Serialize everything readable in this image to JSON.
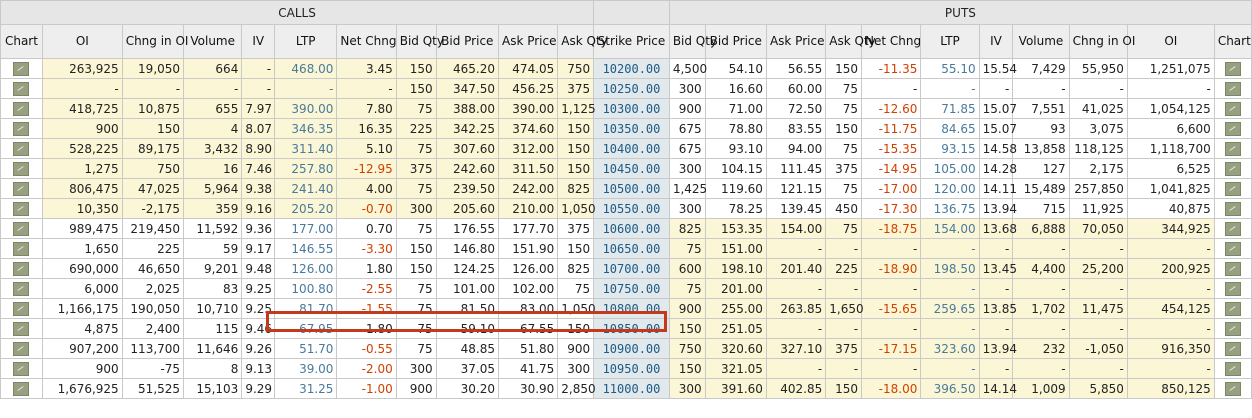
{
  "groups": {
    "calls": "CALLS",
    "puts": "PUTS"
  },
  "headers": {
    "calls": [
      "Chart",
      "OI",
      "Chng in OI",
      "Volume",
      "IV",
      "LTP",
      "Net Chng",
      "Bid Qty",
      "Bid Price",
      "Ask Price",
      "Ask Qty"
    ],
    "strike": "Strike Price",
    "puts": [
      "Bid Qty",
      "Bid Price",
      "Ask Price",
      "Ask Qty",
      "Net Chng",
      "LTP",
      "IV",
      "Volume",
      "Chng in OI",
      "OI",
      "Chart"
    ]
  },
  "rows": [
    {
      "calls": [
        "263,925",
        "19,050",
        "664",
        "-",
        "468.00",
        "3.45",
        "150",
        "465.20",
        "474.05",
        "750"
      ],
      "strike": "10200.00",
      "puts": [
        "4,500",
        "54.10",
        "56.55",
        "150",
        "-11.35",
        "55.10",
        "15.54",
        "7,429",
        "55,950",
        "1,251,075"
      ]
    },
    {
      "calls": [
        "-",
        "-",
        "-",
        "-",
        "-",
        "-",
        "150",
        "347.50",
        "456.25",
        "375"
      ],
      "strike": "10250.00",
      "puts": [
        "300",
        "16.60",
        "60.00",
        "75",
        "-",
        "-",
        "-",
        "-",
        "-",
        "-"
      ]
    },
    {
      "calls": [
        "418,725",
        "10,875",
        "655",
        "7.97",
        "390.00",
        "7.80",
        "75",
        "388.00",
        "390.00",
        "1,125"
      ],
      "strike": "10300.00",
      "puts": [
        "900",
        "71.00",
        "72.50",
        "75",
        "-12.60",
        "71.85",
        "15.07",
        "7,551",
        "41,025",
        "1,054,125"
      ]
    },
    {
      "calls": [
        "900",
        "150",
        "4",
        "8.07",
        "346.35",
        "16.35",
        "225",
        "342.25",
        "374.60",
        "150"
      ],
      "strike": "10350.00",
      "puts": [
        "675",
        "78.80",
        "83.55",
        "150",
        "-11.75",
        "84.65",
        "15.07",
        "93",
        "3,075",
        "6,600"
      ]
    },
    {
      "calls": [
        "528,225",
        "89,175",
        "3,432",
        "8.90",
        "311.40",
        "5.10",
        "75",
        "307.60",
        "312.00",
        "150"
      ],
      "strike": "10400.00",
      "puts": [
        "675",
        "93.10",
        "94.00",
        "75",
        "-15.35",
        "93.15",
        "14.58",
        "13,858",
        "118,125",
        "1,118,700"
      ]
    },
    {
      "calls": [
        "1,275",
        "750",
        "16",
        "7.46",
        "257.80",
        "-12.95",
        "375",
        "242.60",
        "311.50",
        "150"
      ],
      "strike": "10450.00",
      "puts": [
        "300",
        "104.15",
        "111.45",
        "375",
        "-14.95",
        "105.00",
        "14.28",
        "127",
        "2,175",
        "6,525"
      ]
    },
    {
      "calls": [
        "806,475",
        "47,025",
        "5,964",
        "9.38",
        "241.40",
        "4.00",
        "75",
        "239.50",
        "242.00",
        "825"
      ],
      "strike": "10500.00",
      "puts": [
        "1,425",
        "119.60",
        "121.15",
        "75",
        "-17.00",
        "120.00",
        "14.11",
        "15,489",
        "257,850",
        "1,041,825"
      ]
    },
    {
      "calls": [
        "10,350",
        "-2,175",
        "359",
        "9.16",
        "205.20",
        "-0.70",
        "300",
        "205.60",
        "210.00",
        "1,050"
      ],
      "strike": "10550.00",
      "puts": [
        "300",
        "78.25",
        "139.45",
        "450",
        "-17.30",
        "136.75",
        "13.94",
        "715",
        "11,925",
        "40,875"
      ]
    },
    {
      "calls": [
        "989,475",
        "219,450",
        "11,592",
        "9.36",
        "177.00",
        "0.70",
        "75",
        "176.55",
        "177.70",
        "375"
      ],
      "strike": "10600.00",
      "puts": [
        "825",
        "153.35",
        "154.00",
        "75",
        "-18.75",
        "154.00",
        "13.68",
        "6,888",
        "70,050",
        "344,925"
      ]
    },
    {
      "calls": [
        "1,650",
        "225",
        "59",
        "9.17",
        "146.55",
        "-3.30",
        "150",
        "146.80",
        "151.90",
        "150"
      ],
      "strike": "10650.00",
      "puts": [
        "75",
        "151.00",
        "-",
        "-",
        "-",
        "-",
        "-",
        "-",
        "-",
        "-"
      ]
    },
    {
      "calls": [
        "690,000",
        "46,650",
        "9,201",
        "9.48",
        "126.00",
        "1.80",
        "150",
        "124.25",
        "126.00",
        "825"
      ],
      "strike": "10700.00",
      "puts": [
        "600",
        "198.10",
        "201.40",
        "225",
        "-18.90",
        "198.50",
        "13.45",
        "4,400",
        "25,200",
        "200,925"
      ]
    },
    {
      "calls": [
        "6,000",
        "2,025",
        "83",
        "9.25",
        "100.80",
        "-2.55",
        "75",
        "101.00",
        "102.00",
        "75"
      ],
      "strike": "10750.00",
      "puts": [
        "75",
        "201.00",
        "-",
        "-",
        "-",
        "-",
        "-",
        "-",
        "-",
        "-"
      ]
    },
    {
      "calls": [
        "1,166,175",
        "190,050",
        "10,710",
        "9.25",
        "81.70",
        "-1.55",
        "75",
        "81.50",
        "83.00",
        "1,050"
      ],
      "strike": "10800.00",
      "puts": [
        "900",
        "255.00",
        "263.85",
        "1,650",
        "-15.65",
        "259.65",
        "13.85",
        "1,702",
        "11,475",
        "454,125"
      ]
    },
    {
      "calls": [
        "4,875",
        "2,400",
        "115",
        "9.46",
        "67.95",
        "1.80",
        "75",
        "59.10",
        "67.55",
        "150"
      ],
      "strike": "10850.00",
      "puts": [
        "150",
        "251.05",
        "-",
        "-",
        "-",
        "-",
        "-",
        "-",
        "-",
        "-"
      ]
    },
    {
      "calls": [
        "907,200",
        "113,700",
        "11,646",
        "9.26",
        "51.70",
        "-0.55",
        "75",
        "48.85",
        "51.80",
        "900"
      ],
      "strike": "10900.00",
      "puts": [
        "750",
        "320.60",
        "327.10",
        "375",
        "-17.15",
        "323.60",
        "13.94",
        "232",
        "-1,050",
        "916,350"
      ]
    },
    {
      "calls": [
        "900",
        "-75",
        "8",
        "9.13",
        "39.00",
        "-2.00",
        "300",
        "37.05",
        "41.75",
        "300"
      ],
      "strike": "10950.00",
      "puts": [
        "150",
        "321.05",
        "-",
        "-",
        "-",
        "-",
        "-",
        "-",
        "-",
        "-"
      ]
    },
    {
      "calls": [
        "1,676,925",
        "51,525",
        "15,103",
        "9.29",
        "31.25",
        "-1.00",
        "900",
        "30.20",
        "30.90",
        "2,850"
      ],
      "strike": "11000.00",
      "puts": [
        "300",
        "391.60",
        "402.85",
        "150",
        "-18.00",
        "396.50",
        "14.14",
        "1,009",
        "5,850",
        "850,125"
      ]
    }
  ],
  "itm": {
    "calls_rows_through_index": 7,
    "puts_rows_from_index": 8
  },
  "highlight": {
    "strike": "10800.00",
    "color": "#c2391b"
  },
  "colors": {
    "itm_background": "#fbf7d6",
    "strike_background": "#e2e9ec",
    "negative_change": "#d04000",
    "ltp_text": "#4a7a9a"
  }
}
